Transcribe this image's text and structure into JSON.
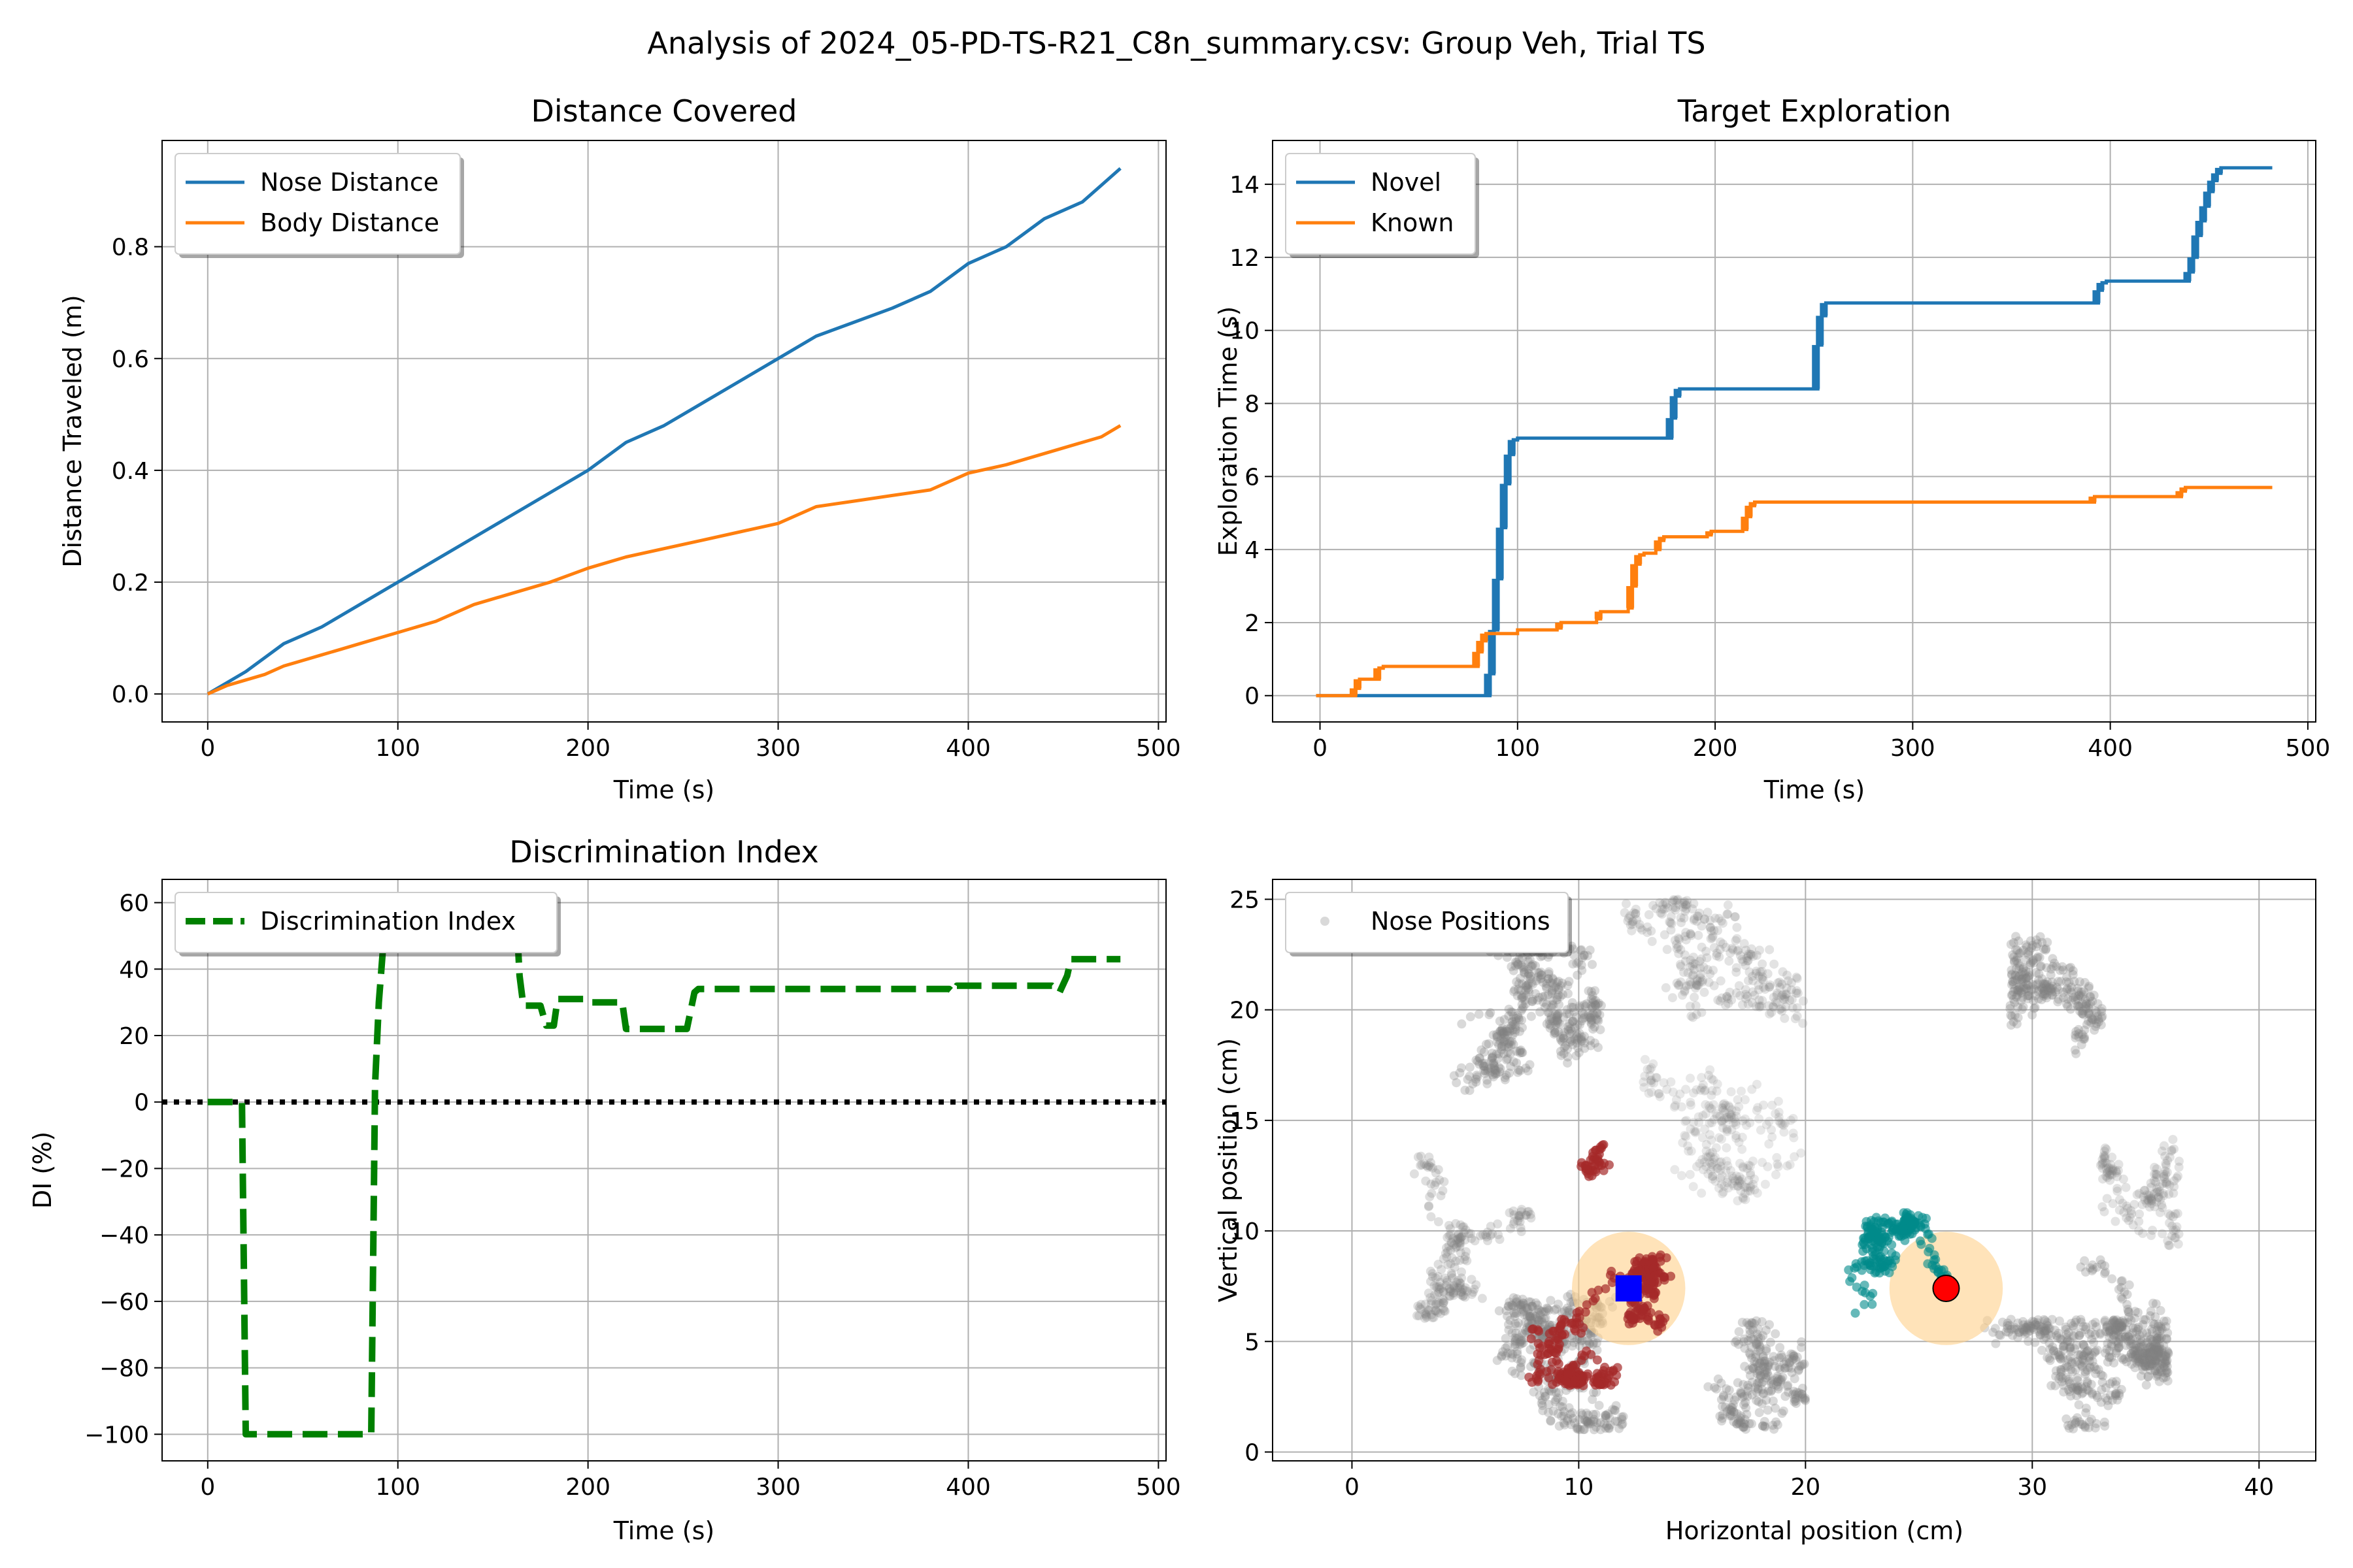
{
  "figure": {
    "suptitle": "Analysis of 2024_05-PD-TS-R21_C8n_summary.csv: Group Veh, Trial TS"
  },
  "colors": {
    "blue": "#1f77b4",
    "orange": "#ff7f0e",
    "green": "#008000",
    "grid": "#b0b0b0",
    "gray": "#808080",
    "darkred": "#a52a2a",
    "teal": "#008b8b",
    "halo": "#ffd08a",
    "novel_marker": "#ff0000",
    "known_marker": "#0000ff"
  },
  "chart_data": [
    {
      "id": "distance",
      "type": "line",
      "title": "Distance Covered",
      "xlabel": "Time (s)",
      "ylabel": "Distance Traveled (m)",
      "xlim": [
        -24,
        504
      ],
      "ylim": [
        -0.05,
        0.99
      ],
      "xticks": [
        0,
        100,
        200,
        300,
        400,
        500
      ],
      "yticks": [
        0.0,
        0.2,
        0.4,
        0.6,
        0.8
      ],
      "ytick_labels": [
        "0.0",
        "0.2",
        "0.4",
        "0.6",
        "0.8"
      ],
      "grid": true,
      "legend": "upper left",
      "series": [
        {
          "name": "Nose Distance",
          "color": "#1f77b4",
          "x": [
            0,
            10,
            20,
            30,
            40,
            50,
            60,
            70,
            80,
            90,
            100,
            120,
            140,
            160,
            180,
            200,
            220,
            240,
            260,
            280,
            300,
            320,
            340,
            360,
            380,
            400,
            420,
            440,
            460,
            470,
            480
          ],
          "y": [
            0.0,
            0.02,
            0.04,
            0.065,
            0.09,
            0.105,
            0.12,
            0.14,
            0.16,
            0.18,
            0.2,
            0.24,
            0.28,
            0.32,
            0.36,
            0.4,
            0.45,
            0.48,
            0.52,
            0.56,
            0.6,
            0.64,
            0.665,
            0.69,
            0.72,
            0.77,
            0.8,
            0.85,
            0.88,
            0.91,
            0.94
          ]
        },
        {
          "name": "Body Distance",
          "color": "#ff7f0e",
          "x": [
            0,
            10,
            20,
            30,
            40,
            50,
            60,
            70,
            80,
            90,
            100,
            120,
            140,
            160,
            180,
            200,
            220,
            240,
            260,
            280,
            300,
            320,
            340,
            360,
            380,
            400,
            420,
            440,
            460,
            470,
            480
          ],
          "y": [
            0.0,
            0.015,
            0.025,
            0.035,
            0.05,
            0.06,
            0.07,
            0.08,
            0.09,
            0.1,
            0.11,
            0.13,
            0.16,
            0.18,
            0.2,
            0.225,
            0.245,
            0.26,
            0.275,
            0.29,
            0.305,
            0.335,
            0.345,
            0.355,
            0.365,
            0.395,
            0.41,
            0.43,
            0.45,
            0.46,
            0.48
          ]
        }
      ]
    },
    {
      "id": "exploration",
      "type": "line",
      "title": "Target Exploration",
      "xlabel": "Time (s)",
      "ylabel": "Exploration Time (s)",
      "xlim": [
        -24,
        504
      ],
      "ylim": [
        -0.72,
        15.2
      ],
      "xticks": [
        0,
        100,
        200,
        300,
        400,
        500
      ],
      "yticks": [
        0,
        2,
        4,
        6,
        8,
        10,
        12,
        14
      ],
      "ytick_labels": [
        "0",
        "2",
        "4",
        "6",
        "8",
        "10",
        "12",
        "14"
      ],
      "grid": true,
      "legend": "upper left",
      "series": [
        {
          "name": "Novel",
          "color": "#1f77b4",
          "x": [
            -2,
            84,
            86,
            88,
            90,
            92,
            94,
            96,
            98,
            100,
            176,
            178,
            180,
            182,
            250,
            252,
            254,
            256,
            392,
            394,
            396,
            398,
            438,
            440,
            442,
            444,
            446,
            448,
            450,
            452,
            454,
            456,
            482
          ],
          "y": [
            0,
            0,
            0.6,
            1.8,
            3.2,
            4.6,
            5.8,
            6.6,
            7.0,
            7.05,
            7.05,
            7.6,
            8.2,
            8.4,
            8.4,
            9.6,
            10.4,
            10.75,
            10.75,
            11.1,
            11.3,
            11.35,
            11.35,
            11.6,
            12.0,
            12.6,
            13.0,
            13.4,
            13.8,
            14.1,
            14.3,
            14.45,
            14.45
          ]
        },
        {
          "name": "Known",
          "color": "#ff7f0e",
          "x": [
            -2,
            16,
            18,
            20,
            28,
            30,
            32,
            78,
            80,
            82,
            84,
            100,
            120,
            122,
            140,
            142,
            156,
            158,
            160,
            162,
            164,
            170,
            172,
            174,
            196,
            198,
            214,
            216,
            218,
            220,
            390,
            392,
            434,
            436,
            438,
            482
          ],
          "y": [
            0,
            0,
            0.2,
            0.45,
            0.45,
            0.75,
            0.8,
            0.8,
            1.2,
            1.5,
            1.7,
            1.8,
            1.85,
            2.0,
            2.1,
            2.3,
            2.4,
            3.0,
            3.6,
            3.85,
            3.9,
            4.0,
            4.25,
            4.35,
            4.4,
            4.5,
            4.55,
            4.9,
            5.2,
            5.3,
            5.3,
            5.45,
            5.45,
            5.6,
            5.7,
            5.7
          ]
        }
      ]
    },
    {
      "id": "di",
      "type": "line",
      "title": "Discrimination Index",
      "xlabel": "Time (s)",
      "ylabel": "DI (%)",
      "xlim": [
        -24,
        504
      ],
      "ylim": [
        -108,
        67
      ],
      "xticks": [
        0,
        100,
        200,
        300,
        400,
        500
      ],
      "yticks": [
        -100,
        -80,
        -60,
        -40,
        -20,
        0,
        20,
        40,
        60
      ],
      "ytick_labels": [
        "−100",
        "−80",
        "−60",
        "−40",
        "−20",
        "0",
        "20",
        "40",
        "60"
      ],
      "grid": true,
      "legend": "upper left",
      "reference_line": {
        "y": 0,
        "color": "#000000",
        "style": "dotted"
      },
      "series": [
        {
          "name": "Discrimination Index",
          "color": "#008000",
          "style": "dashed",
          "x": [
            0,
            12,
            18,
            20,
            86,
            88,
            90,
            92,
            95,
            96
          ],
          "y": [
            0,
            0,
            0,
            -100,
            -100,
            5,
            30,
            45,
            50,
            60
          ]
        },
        {
          "name": "",
          "color": "#008000",
          "style": "dashed",
          "x": [
            162,
            164,
            166,
            175,
            178,
            182,
            184,
            198,
            200,
            218,
            220,
            252,
            256,
            258,
            390,
            392,
            394,
            444,
            448,
            452,
            454,
            480
          ],
          "y": [
            60,
            38,
            29,
            29,
            23,
            23,
            31,
            31,
            30,
            30,
            22,
            22,
            33,
            34,
            34,
            33,
            35,
            35,
            33,
            38,
            43,
            43
          ]
        }
      ]
    },
    {
      "id": "positions",
      "type": "scatter",
      "title": "",
      "xlabel": "Horizontal position (cm)",
      "ylabel": "Vertical position (cm)",
      "xlim": [
        -3.5,
        42.5
      ],
      "ylim": [
        -0.4,
        25.9
      ],
      "xticks": [
        0,
        10,
        20,
        30,
        40
      ],
      "yticks": [
        0,
        5,
        10,
        15,
        20,
        25
      ],
      "ytick_labels": [
        "0",
        "5",
        "10",
        "15",
        "20",
        "25"
      ],
      "grid": true,
      "legend": "upper left",
      "series": [
        {
          "name": "Nose Positions",
          "color": "#808080"
        }
      ],
      "known_target": {
        "x": 12.2,
        "y": 7.4,
        "marker": "square",
        "color": "#0000ff"
      },
      "novel_target": {
        "x": 26.2,
        "y": 7.4,
        "marker": "circle",
        "color": "#ff0000"
      },
      "target_radius_cm": 2.5
    }
  ]
}
